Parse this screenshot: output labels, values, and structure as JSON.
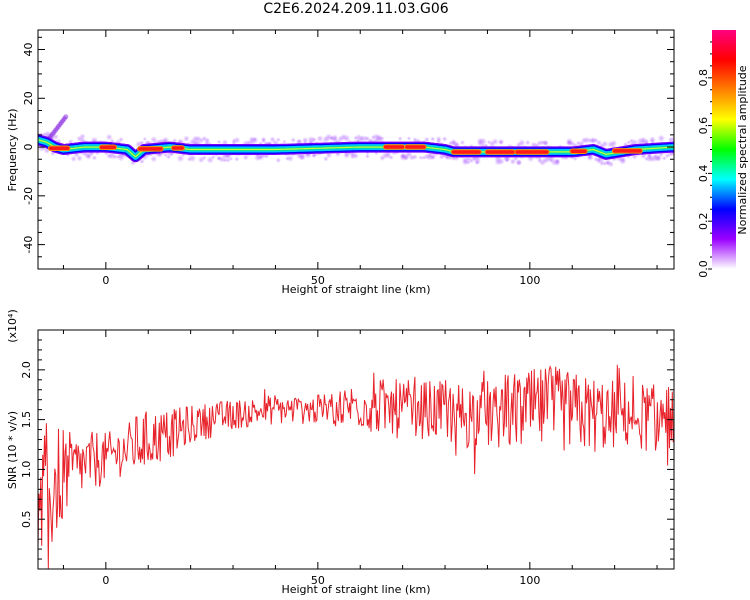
{
  "chart_data": [
    {
      "type": "heatmap",
      "title": "C2E6.2024.209.11.03.G06",
      "xlabel": "Height of straight line (km)",
      "ylabel": "Frequency (Hz)",
      "xlim": [
        -16,
        134
      ],
      "ylim": [
        -50,
        48
      ],
      "x_ticks": [
        "0",
        "50",
        "100"
      ],
      "y_ticks": [
        "40",
        "20",
        "0",
        "-20",
        "-40"
      ],
      "colorbar": {
        "label": "Normalized spectral amplitude",
        "range": [
          0,
          1
        ],
        "ticks": [
          "0.0",
          "0.2",
          "0.4",
          "0.6",
          "0.8"
        ],
        "colors": [
          "#ffffff",
          "#9b00ff",
          "#0000ff",
          "#00ffff",
          "#00ff00",
          "#ffff00",
          "#ff8000",
          "#ff0000",
          "#ff0080"
        ]
      },
      "ridge": {
        "x": [
          -16,
          -14,
          -12,
          -10,
          -5,
          0,
          5,
          7,
          9,
          15,
          20,
          40,
          60,
          70,
          75,
          80,
          82,
          100,
          110,
          115,
          118,
          125,
          134
        ],
        "freq_hz": [
          3,
          2,
          0,
          -1,
          0,
          0,
          -1,
          -4,
          -1,
          0,
          -1,
          -1,
          0,
          0,
          0,
          -1,
          -2,
          -2,
          -2,
          -1,
          -3,
          -1,
          0
        ]
      },
      "strong_segments_km": [
        [
          -13,
          -9
        ],
        [
          -1,
          2
        ],
        [
          8,
          13
        ],
        [
          16,
          18
        ],
        [
          66,
          70
        ],
        [
          71,
          75
        ],
        [
          82,
          88
        ],
        [
          90,
          96
        ],
        [
          97,
          104
        ],
        [
          110,
          113
        ],
        [
          120,
          126
        ]
      ]
    },
    {
      "type": "line",
      "xlabel": "Height of straight line (km)",
      "ylabel": "SNR (10 * v/v)",
      "y_multiplier": "(x10⁴)",
      "xlim": [
        -16,
        134
      ],
      "ylim": [
        0,
        2.4
      ],
      "x_ticks": [
        "0",
        "50",
        "100"
      ],
      "y_ticks": [
        "0.5",
        "1.0",
        "1.5",
        "2.0"
      ],
      "series": [
        {
          "color": "#e8222a",
          "x": [
            -16,
            -14,
            -12,
            -10,
            -8,
            -5,
            -2,
            0,
            2,
            5,
            7,
            10,
            15,
            20,
            25,
            30,
            35,
            40,
            45,
            50,
            55,
            60,
            65,
            70,
            75,
            80,
            85,
            90,
            95,
            100,
            105,
            110,
            115,
            120,
            125,
            130,
            134
          ],
          "mean": [
            0.5,
            0.7,
            0.85,
            0.95,
            1.0,
            1.05,
            1.1,
            1.12,
            1.15,
            1.2,
            1.25,
            1.3,
            1.35,
            1.45,
            1.5,
            1.55,
            1.58,
            1.6,
            1.6,
            1.6,
            1.62,
            1.65,
            1.62,
            1.6,
            1.6,
            1.58,
            1.55,
            1.55,
            1.58,
            1.6,
            1.6,
            1.58,
            1.55,
            1.55,
            1.55,
            1.5,
            1.55
          ],
          "spread": [
            0.4,
            0.8,
            0.6,
            0.5,
            0.35,
            0.3,
            0.3,
            0.25,
            0.25,
            0.25,
            0.3,
            0.3,
            0.25,
            0.2,
            0.18,
            0.15,
            0.15,
            0.15,
            0.15,
            0.15,
            0.2,
            0.25,
            0.3,
            0.3,
            0.3,
            0.3,
            0.35,
            0.35,
            0.4,
            0.4,
            0.45,
            0.4,
            0.4,
            0.35,
            0.35,
            0.35,
            0.35
          ]
        }
      ]
    }
  ]
}
